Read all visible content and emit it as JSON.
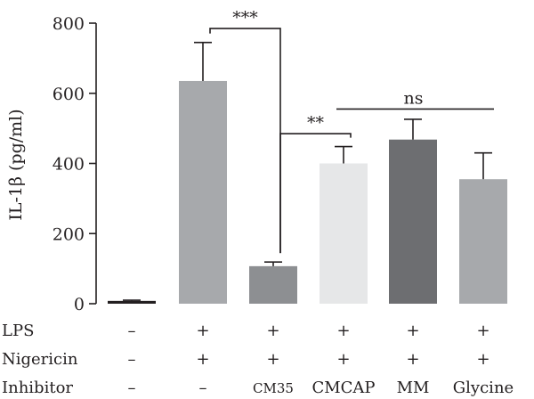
{
  "chart_data": {
    "type": "bar",
    "ylabel": "IL-1β (pg/ml)",
    "ylim": [
      0,
      800
    ],
    "yticks": [
      0,
      200,
      400,
      600,
      800
    ],
    "grid": false,
    "bars": [
      {
        "value": 8,
        "error": 2,
        "color": "#231f20"
      },
      {
        "value": 635,
        "error": 110,
        "color": "#a7a9ac"
      },
      {
        "value": 107,
        "error": 12,
        "color": "#8d8f92"
      },
      {
        "value": 400,
        "error": 48,
        "color": "#e6e7e8"
      },
      {
        "value": 468,
        "error": 58,
        "color": "#6d6e71"
      },
      {
        "value": 355,
        "error": 75,
        "color": "#a7a9ac"
      }
    ],
    "conditions": [
      {
        "label": "LPS",
        "values": [
          "–",
          "+",
          "+",
          "+",
          "+",
          "+"
        ]
      },
      {
        "label": "Nigericin",
        "values": [
          "–",
          "+",
          "+",
          "+",
          "+",
          "+"
        ]
      },
      {
        "label": "Inhibitor",
        "values": [
          "–",
          "–",
          "CM35",
          "CMCAP",
          "MM",
          "Glycine"
        ]
      }
    ],
    "significance": [
      {
        "from": 1,
        "to": 2,
        "label": "***",
        "y": 785
      },
      {
        "from": 2,
        "to": 3,
        "label": "**",
        "y": 485
      },
      {
        "from": 3,
        "to": 5,
        "label": "ns",
        "y": 555
      }
    ]
  }
}
